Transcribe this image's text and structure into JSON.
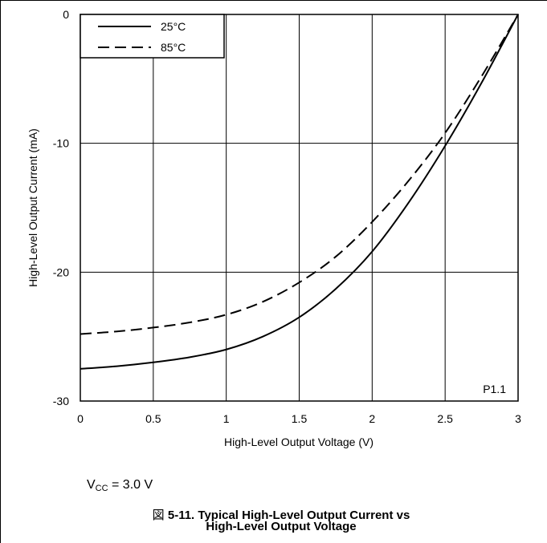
{
  "chart_data": {
    "type": "line",
    "xlabel": "High-Level Output Voltage (V)",
    "ylabel": "High-Level Output Current (mA)",
    "xlim": [
      0,
      3
    ],
    "ylim": [
      -30,
      0
    ],
    "xticks": [
      "0",
      "0.5",
      "1",
      "1.5",
      "2",
      "2.5",
      "3"
    ],
    "yticks": [
      "0",
      "-10",
      "-20",
      "-30"
    ],
    "grid": true,
    "legend": "top-left",
    "annotation": "P1.1",
    "series": [
      {
        "name": "25°C",
        "style": "solid",
        "color": "#000000",
        "x": [
          0,
          0.25,
          0.5,
          0.75,
          1.0,
          1.25,
          1.5,
          1.75,
          2.0,
          2.25,
          2.5,
          2.75,
          3.0
        ],
        "y": [
          -27.5,
          -27.3,
          -27.0,
          -26.6,
          -26.0,
          -25.0,
          -23.5,
          -21.3,
          -18.4,
          -14.6,
          -10.2,
          -5.3,
          0
        ]
      },
      {
        "name": "85°C",
        "style": "dashed",
        "color": "#000000",
        "x": [
          0,
          0.25,
          0.5,
          0.75,
          1.0,
          1.25,
          1.5,
          1.75,
          2.0,
          2.25,
          2.5,
          2.75,
          3.0
        ],
        "y": [
          -24.8,
          -24.6,
          -24.3,
          -23.9,
          -23.3,
          -22.3,
          -20.8,
          -18.8,
          -16.1,
          -12.9,
          -9.2,
          -4.8,
          0
        ]
      }
    ]
  },
  "condition": {
    "prefix": "V",
    "subscript": "CC",
    "suffix": " = 3.0 V"
  },
  "caption": {
    "prefix": "図",
    "line1": "5-11. Typical High-Level Output Current vs",
    "line2": "High-Level Output Voltage"
  }
}
